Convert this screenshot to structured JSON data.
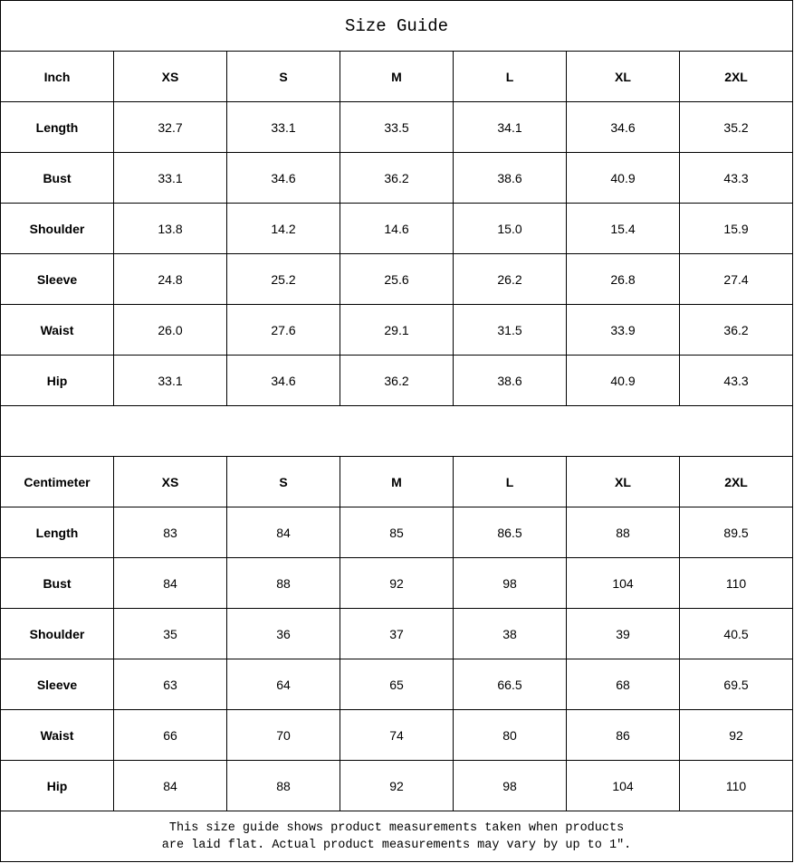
{
  "title": "Size Guide",
  "inch_table": {
    "unit_label": "Inch",
    "sizes": [
      "XS",
      "S",
      "M",
      "L",
      "XL",
      "2XL"
    ],
    "rows": [
      {
        "label": "Length",
        "values": [
          "32.7",
          "33.1",
          "33.5",
          "34.1",
          "34.6",
          "35.2"
        ]
      },
      {
        "label": "Bust",
        "values": [
          "33.1",
          "34.6",
          "36.2",
          "38.6",
          "40.9",
          "43.3"
        ]
      },
      {
        "label": "Shoulder",
        "values": [
          "13.8",
          "14.2",
          "14.6",
          "15.0",
          "15.4",
          "15.9"
        ]
      },
      {
        "label": "Sleeve",
        "values": [
          "24.8",
          "25.2",
          "25.6",
          "26.2",
          "26.8",
          "27.4"
        ]
      },
      {
        "label": "Waist",
        "values": [
          "26.0",
          "27.6",
          "29.1",
          "31.5",
          "33.9",
          "36.2"
        ]
      },
      {
        "label": "Hip",
        "values": [
          "33.1",
          "34.6",
          "36.2",
          "38.6",
          "40.9",
          "43.3"
        ]
      }
    ]
  },
  "cm_table": {
    "unit_label": "Centimeter",
    "sizes": [
      "XS",
      "S",
      "M",
      "L",
      "XL",
      "2XL"
    ],
    "rows": [
      {
        "label": "Length",
        "values": [
          "83",
          "84",
          "85",
          "86.5",
          "88",
          "89.5"
        ]
      },
      {
        "label": "Bust",
        "values": [
          "84",
          "88",
          "92",
          "98",
          "104",
          "110"
        ]
      },
      {
        "label": "Shoulder",
        "values": [
          "35",
          "36",
          "37",
          "38",
          "39",
          "40.5"
        ]
      },
      {
        "label": "Sleeve",
        "values": [
          "63",
          "64",
          "65",
          "66.5",
          "68",
          "69.5"
        ]
      },
      {
        "label": "Waist",
        "values": [
          "66",
          "70",
          "74",
          "80",
          "86",
          "92"
        ]
      },
      {
        "label": "Hip",
        "values": [
          "84",
          "88",
          "92",
          "98",
          "104",
          "110"
        ]
      }
    ]
  },
  "note": {
    "line1": "This size guide shows product measurements taken when products",
    "line2": "are laid flat. Actual product measurements may vary by up to 1″."
  }
}
